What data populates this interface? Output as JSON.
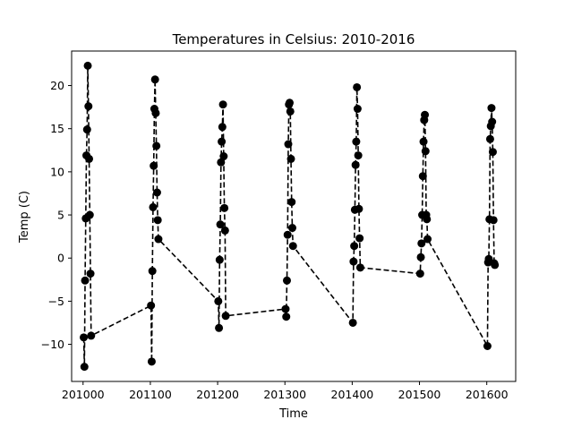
{
  "chart_data": {
    "type": "line",
    "title": "Temperatures in Celsius: 2010-2016",
    "xlabel": "Time",
    "ylabel": "Temp (C)",
    "xlim": [
      200983,
      201643
    ],
    "ylim": [
      -14.3,
      24.0
    ],
    "xticks": [
      201000,
      201100,
      201200,
      201300,
      201400,
      201500,
      201600
    ],
    "yticks": [
      -10,
      -5,
      0,
      5,
      10,
      15,
      20
    ],
    "grid": false,
    "series": [
      {
        "style": "dashed line with circle markers",
        "color": "#000000",
        "x": [
          201001,
          201002,
          201003,
          201004,
          201005,
          201006,
          201007,
          201008,
          201009,
          201010,
          201011,
          201012,
          201101,
          201102,
          201103,
          201104,
          201105,
          201106,
          201107,
          201108,
          201109,
          201110,
          201111,
          201112,
          201201,
          201202,
          201203,
          201204,
          201205,
          201206,
          201207,
          201208,
          201209,
          201210,
          201211,
          201212,
          201301,
          201302,
          201303,
          201304,
          201305,
          201306,
          201307,
          201308,
          201309,
          201310,
          201311,
          201312,
          201401,
          201402,
          201403,
          201404,
          201405,
          201406,
          201407,
          201408,
          201409,
          201410,
          201411,
          201412,
          201501,
          201502,
          201503,
          201504,
          201505,
          201506,
          201507,
          201508,
          201509,
          201510,
          201511,
          201512,
          201601,
          201602,
          201603,
          201604,
          201605,
          201606,
          201607,
          201608,
          201609,
          201610,
          201611,
          201612
        ],
        "y": [
          -9.2,
          -12.6,
          -2.6,
          4.6,
          11.9,
          14.9,
          22.3,
          17.6,
          11.5,
          5.0,
          -1.8,
          -9.0,
          -5.5,
          -12.0,
          -1.5,
          5.9,
          10.7,
          17.3,
          20.7,
          16.8,
          13.0,
          7.6,
          4.4,
          2.2,
          -5.0,
          -8.1,
          -0.2,
          3.9,
          11.1,
          13.5,
          15.2,
          17.8,
          11.8,
          5.8,
          3.2,
          -6.7,
          -5.9,
          -6.8,
          -2.6,
          2.7,
          13.2,
          17.8,
          18.0,
          17.0,
          11.5,
          6.5,
          3.5,
          1.4,
          -7.5,
          -0.4,
          1.4,
          5.6,
          10.8,
          13.5,
          19.8,
          17.3,
          11.9,
          5.7,
          2.3,
          -1.1,
          -1.8,
          0.1,
          1.7,
          5.0,
          9.5,
          13.5,
          16.0,
          16.6,
          12.4,
          5.0,
          4.5,
          2.2,
          -10.2,
          -0.5,
          -0.1,
          4.5,
          13.8,
          15.3,
          17.4,
          15.8,
          12.3,
          4.4,
          -0.6,
          -0.8
        ]
      }
    ]
  }
}
